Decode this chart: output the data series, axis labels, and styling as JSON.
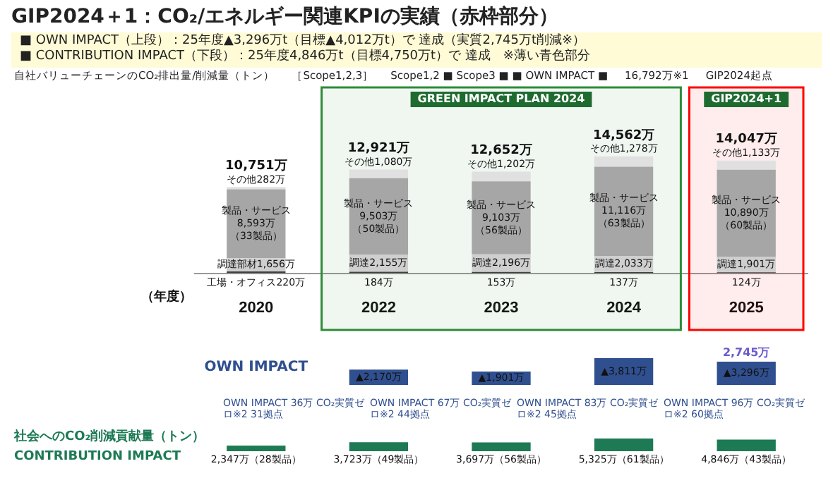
{
  "chart_data": [
    {
      "type": "bar",
      "title": "GIP2024＋1：CO₂/エネルギー関連KPIの実績（赤枠部分）",
      "subtitle": "■ OWN IMPACT（上段）：25年度▲3,296万t（目標▲4,012万t）で 達成（実質2,745万t削減※）\n■ CONTRIBUTION IMPACT（下段）：25年度4,846万t（目標4,750万t）で 達成　※薄い青色部分",
      "xlabel": "（年度）",
      "categories": [
        "2020",
        "2022",
        "2023",
        "2024",
        "2025"
      ],
      "stacked": true,
      "series": [
        {
          "color": "#404040",
          "values": [
            220,
            184,
            153,
            137,
            124
          ],
          "value_labels": [
            "工場・オフィス220万",
            "184万",
            "153万",
            "137万",
            "124万"
          ]
        },
        {
          "color": "#cfcfcf",
          "values": [
            1656,
            2155,
            2196,
            2033,
            1901
          ],
          "value_labels": [
            "調達部材1,656万",
            "調達2,155万",
            "調達2,196万",
            "調達2,033万",
            "調達1,901万"
          ]
        },
        {
          "color": "#a6a6a6",
          "values": [
            8593,
            9503,
            9103,
            11116,
            10890
          ],
          "value_labels": [
            "製品・サービス8,593万（33製品）",
            "製品・サービス9,503万（50製品）",
            "製品・サービス9,103万（56製品）",
            "製品・サービス11,116万（63製品）",
            "製品・サービス10,890万（60製品）"
          ]
        },
        {
          "color": "#e0e0e0",
          "values": [
            282,
            1080,
            1202,
            1278,
            1133
          ],
          "value_labels": [
            "その他282万",
            "その他1,080万",
            "その他1,202万",
            "その他1,278万",
            "その他1,133万"
          ]
        }
      ],
      "totals": [
        "10,751万",
        "12,921万",
        "12,652万",
        "14,562万",
        "14,047万"
      ],
      "bands": [
        {
          "axis": "x",
          "from": "2022",
          "to": "2024",
          "label": "GREEN IMPACT PLAN 2024",
          "color": "#2e8b3a"
        },
        {
          "axis": "x",
          "from": "2025",
          "to": "2025",
          "label": "GIP2024+1",
          "color": "#ff0000"
        }
      ],
      "annotations": [
        "自社バリューチェーンのCO₂排出量/削減量（トン）",
        "［Scope1,2,3］",
        "Scope1,2 ■ Scope3 ■ ■ OWN IMPACT ■",
        "16,792万※1",
        "GIP2024起点"
      ]
    },
    {
      "type": "bar",
      "title": "OWN IMPACT",
      "categories": [
        "2020",
        "2022",
        "2023",
        "2024",
        "2025"
      ],
      "tick_labels": false,
      "values": [
        null,
        2170,
        1901,
        3811,
        3296
      ],
      "color": "#2f4f8f",
      "value_labels": [
        null,
        "▲2,170万",
        "▲1,901万",
        "▲3,811万",
        "▲3,296万"
      ],
      "annotations": [
        {
          "text": "2,745万",
          "x": "2025",
          "y": 3296
        },
        "OWN IMPACT 36万 CO₂実質ゼロ※2 31拠点",
        "OWN IMPACT 67万 CO₂実質ゼロ※2 44拠点",
        "OWN IMPACT 83万 CO₂実質ゼロ※2 45拠点",
        "OWN IMPACT 96万 CO₂実質ゼロ※2 60拠点"
      ]
    },
    {
      "type": "bar",
      "title": "社会へのCO₂削減貢献量（トン）",
      "categories": [
        "2020",
        "2022",
        "2023",
        "2024",
        "2025"
      ],
      "tick_labels": false,
      "values": [
        2347,
        3723,
        3697,
        5325,
        4846
      ],
      "color": "#1d7a55",
      "value_labels": [
        "2,347万（28製品）",
        "3,723万（49製品）",
        "3,697万（56製品）",
        "5,325万（61製品）",
        "4,846万（43製品）"
      ],
      "annotations": [
        "CONTRIBUTION IMPACT"
      ]
    }
  ]
}
